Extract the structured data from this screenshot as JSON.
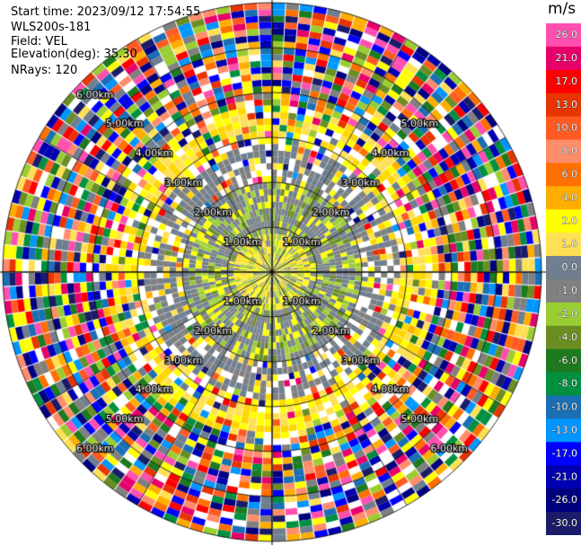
{
  "header": {
    "start_time": "Start time: 2023/09/12 17:54:55",
    "instrument": "WLS200s-181",
    "field": "Field: VEL",
    "elevation": "Elevation(deg): 35.30",
    "nrays": "NRays: 120"
  },
  "chart_data": {
    "type": "ppi",
    "colorbar": {
      "unit": "m/s",
      "ticks": [
        "26.0",
        "21.0",
        "17.0",
        "13.0",
        "10.0",
        "8.0",
        "6.0",
        "4.0",
        "2.0",
        "1.0",
        "0.0",
        "-1.0",
        "-2.0",
        "-4.0",
        "-6.0",
        "-8.0",
        "-10.0",
        "-13.0",
        "-17.0",
        "-21.0",
        "-26.0",
        "-30.0"
      ],
      "colors": [
        "#ff4fb0",
        "#e8006a",
        "#ff0000",
        "#e83400",
        "#ff5a22",
        "#ff8c6a",
        "#ff7000",
        "#ffae00",
        "#ffff00",
        "#ffe055",
        "#6f7f8f",
        "#808080",
        "#9acd32",
        "#6b8e23",
        "#1e7a1e",
        "#009040",
        "#1a6fb5",
        "#0095ff",
        "#0000ff",
        "#0000b0",
        "#000080",
        "#1b1b6b"
      ]
    },
    "range_ring_labels": [
      {
        "label": "1.00km",
        "angles_deg": [
          315,
          45,
          135,
          225
        ]
      },
      {
        "label": "2.00km",
        "angles_deg": [
          315,
          45,
          135,
          225
        ]
      },
      {
        "label": "3.00km",
        "angles_deg": [
          315,
          45,
          135,
          225
        ]
      },
      {
        "label": "4.00km",
        "angles_deg": [
          315,
          45,
          135,
          225
        ]
      },
      {
        "label": "5.00km",
        "angles_deg": [
          315,
          45,
          135,
          225
        ]
      },
      {
        "label": "6.00km",
        "angles_deg": [
          315,
          135,
          225
        ]
      }
    ],
    "nrays": 120,
    "range_gates_drawn": 42,
    "grid": true
  }
}
